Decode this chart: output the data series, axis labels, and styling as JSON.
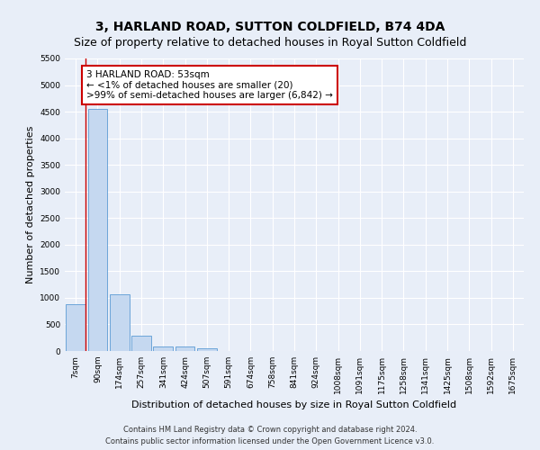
{
  "title": "3, HARLAND ROAD, SUTTON COLDFIELD, B74 4DA",
  "subtitle": "Size of property relative to detached houses in Royal Sutton Coldfield",
  "xlabel": "Distribution of detached houses by size in Royal Sutton Coldfield",
  "ylabel": "Number of detached properties",
  "footer_line1": "Contains HM Land Registry data © Crown copyright and database right 2024.",
  "footer_line2": "Contains public sector information licensed under the Open Government Licence v3.0.",
  "categories": [
    "7sqm",
    "90sqm",
    "174sqm",
    "257sqm",
    "341sqm",
    "424sqm",
    "507sqm",
    "591sqm",
    "674sqm",
    "758sqm",
    "841sqm",
    "924sqm",
    "1008sqm",
    "1091sqm",
    "1175sqm",
    "1258sqm",
    "1341sqm",
    "1425sqm",
    "1508sqm",
    "1592sqm",
    "1675sqm"
  ],
  "values": [
    880,
    4560,
    1060,
    290,
    80,
    80,
    50,
    0,
    0,
    0,
    0,
    0,
    0,
    0,
    0,
    0,
    0,
    0,
    0,
    0,
    0
  ],
  "bar_color": "#c5d8f0",
  "bar_edge_color": "#5b9bd5",
  "annotation_line_color": "#cc0000",
  "annotation_box_color": "#cc0000",
  "annotation_line1": "3 HARLAND ROAD: 53sqm",
  "annotation_line2": "← <1% of detached houses are smaller (20)",
  "annotation_line3": ">99% of semi-detached houses are larger (6,842) →",
  "ylim": [
    0,
    5500
  ],
  "yticks": [
    0,
    500,
    1000,
    1500,
    2000,
    2500,
    3000,
    3500,
    4000,
    4500,
    5000,
    5500
  ],
  "background_color": "#e8eef8",
  "plot_background": "#e8eef8",
  "grid_color": "#ffffff",
  "title_fontsize": 10,
  "subtitle_fontsize": 9,
  "axis_label_fontsize": 8,
  "tick_fontsize": 6.5,
  "annotation_fontsize": 7.5
}
